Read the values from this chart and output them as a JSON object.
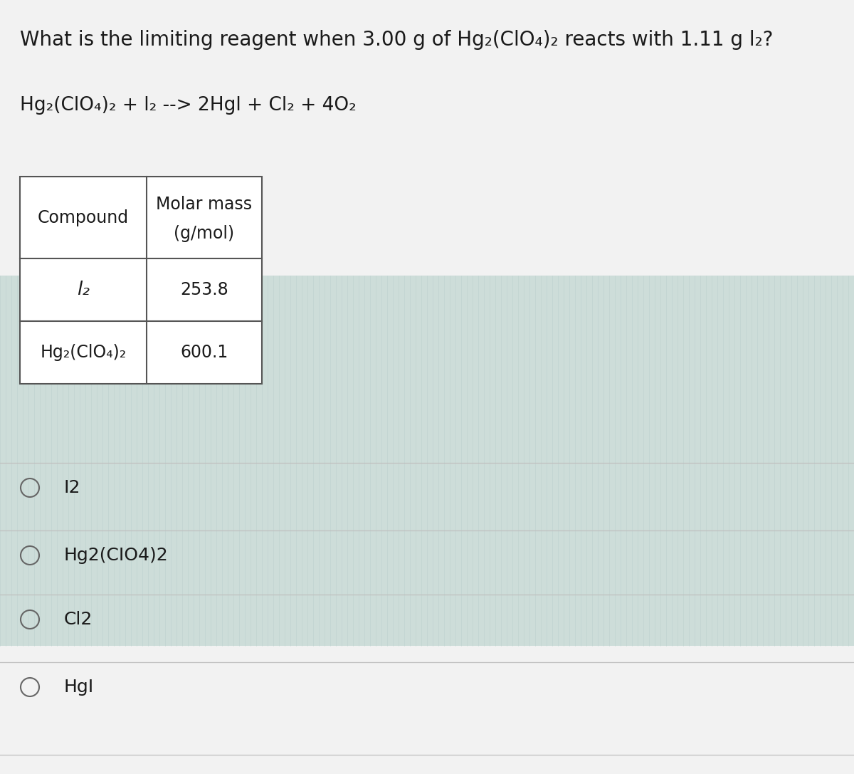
{
  "bg_color_top": "#f0f0f0",
  "bg_color_stripe": "#c8ddd8",
  "title_text": "What is the limiting reagent when 3.00 g of Hg₂(ClO₄)₂ reacts with 1.11 g l₂?",
  "equation_text": "Hg₂(ClO₄)₂ + l₂ --> 2Hgl + Cl₂ + 4O₂",
  "table_header_col1": "Compound",
  "table_header_col2_line1": "Molar mass",
  "table_header_col2_line2": "(g/mol)",
  "table_row1_col1": "l₂",
  "table_row1_col2": "253.8",
  "table_row2_col1": "Hg₂(ClO₄)₂",
  "table_row2_col2": "600.1",
  "option_labels": [
    "I2",
    "Hg2(CIO4)2",
    "Cl2",
    "HgI"
  ],
  "font_size_title": 20,
  "font_size_eq": 19,
  "font_size_table": 17,
  "font_size_options": 18,
  "text_color": "#1a1a1a",
  "table_border_color": "#555555",
  "separator_line_color": "#c0c0c0",
  "stripe_color": "#b8cfcb",
  "stripe_line_color": "#aabfbb"
}
